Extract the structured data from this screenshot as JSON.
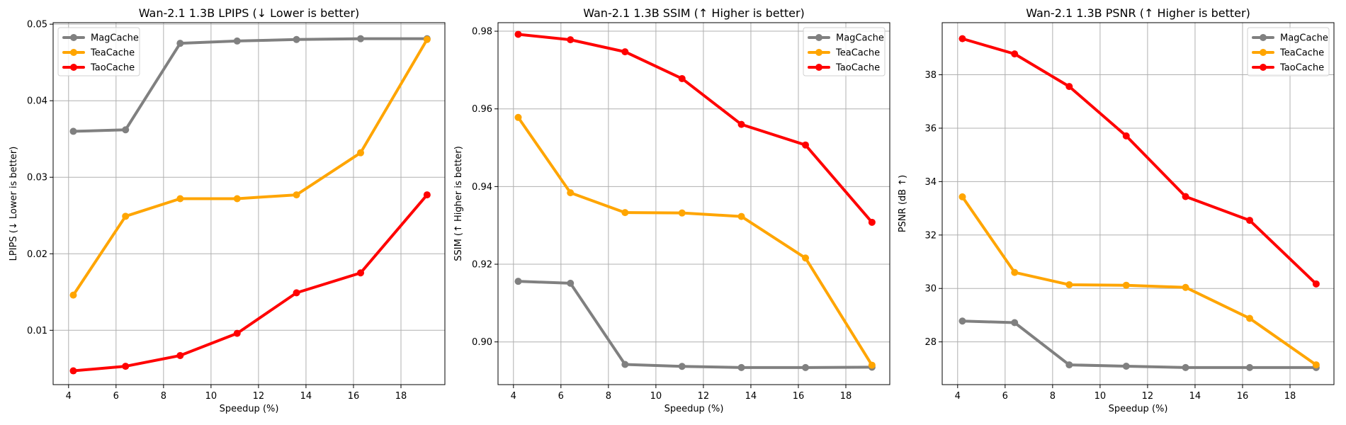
{
  "chart_data": [
    {
      "type": "line",
      "title": "Wan-2.1 1.3B  LPIPS (↓ Lower is better)",
      "xlabel": "Speedup (%)",
      "ylabel": "LPIPS (↓ Lower is better)",
      "xlim": [
        3.35,
        19.85
      ],
      "ylim": [
        0.0029,
        0.0502
      ],
      "xticks": [
        4,
        6,
        8,
        10,
        12,
        14,
        16,
        18
      ],
      "xtick_labels": [
        "4",
        "6",
        "8",
        "10",
        "12",
        "14",
        "16",
        "18"
      ],
      "yticks": [
        0.01,
        0.02,
        0.03,
        0.04,
        0.05
      ],
      "ytick_labels": [
        "0.01",
        "0.02",
        "0.03",
        "0.04",
        "0.05"
      ],
      "grid": true,
      "legend_loc": "upper-left",
      "x": [
        4.2,
        6.4,
        8.7,
        11.1,
        13.6,
        16.3,
        19.1
      ],
      "series": [
        {
          "name": "MagCache",
          "color": "#808080",
          "values": [
            0.036,
            0.0362,
            0.0475,
            0.0478,
            0.048,
            0.0481,
            0.0481
          ]
        },
        {
          "name": "TeaCache",
          "color": "#ffa500",
          "values": [
            0.0146,
            0.0249,
            0.0272,
            0.0272,
            0.0277,
            0.0332,
            0.048
          ]
        },
        {
          "name": "TaoCache",
          "color": "#ff0000",
          "values": [
            0.0047,
            0.0053,
            0.0067,
            0.0096,
            0.0149,
            0.0175,
            0.0277
          ]
        }
      ]
    },
    {
      "type": "line",
      "title": "Wan-2.1 1.3B  SSIM (↑ Higher is better)",
      "xlabel": "Speedup (%)",
      "ylabel": "SSIM (↑ Higher is better)",
      "xlim": [
        3.35,
        19.85
      ],
      "ylim": [
        0.889,
        0.9822
      ],
      "xticks": [
        4,
        6,
        8,
        10,
        12,
        14,
        16,
        18
      ],
      "xtick_labels": [
        "4",
        "6",
        "8",
        "10",
        "12",
        "14",
        "16",
        "18"
      ],
      "yticks": [
        0.9,
        0.92,
        0.94,
        0.96,
        0.98
      ],
      "ytick_labels": [
        "0.90",
        "0.92",
        "0.94",
        "0.96",
        "0.98"
      ],
      "grid": true,
      "legend_loc": "upper-right",
      "x": [
        4.2,
        6.4,
        8.7,
        11.1,
        13.6,
        16.3,
        19.1
      ],
      "series": [
        {
          "name": "MagCache",
          "color": "#808080",
          "values": [
            0.9156,
            0.9151,
            0.8942,
            0.8937,
            0.8934,
            0.8934,
            0.8935
          ]
        },
        {
          "name": "TeaCache",
          "color": "#ffa500",
          "values": [
            0.9578,
            0.9384,
            0.9333,
            0.9332,
            0.9323,
            0.9216,
            0.894
          ]
        },
        {
          "name": "TaoCache",
          "color": "#ff0000",
          "values": [
            0.9792,
            0.9778,
            0.9747,
            0.9678,
            0.956,
            0.9507,
            0.9308
          ]
        }
      ]
    },
    {
      "type": "line",
      "title": "Wan-2.1 1.3B  PSNR (↑ Higher is better)",
      "xlabel": "Speedup (%)",
      "ylabel": "PSNR (dB ↑)",
      "xlim": [
        3.35,
        19.85
      ],
      "ylim": [
        26.4,
        39.95
      ],
      "xticks": [
        4,
        6,
        8,
        10,
        12,
        14,
        16,
        18
      ],
      "xtick_labels": [
        "4",
        "6",
        "8",
        "10",
        "12",
        "14",
        "16",
        "18"
      ],
      "yticks": [
        28,
        30,
        32,
        34,
        36,
        38
      ],
      "ytick_labels": [
        "28",
        "30",
        "32",
        "34",
        "36",
        "38"
      ],
      "grid": true,
      "legend_loc": "upper-right",
      "x": [
        4.2,
        6.4,
        8.7,
        11.1,
        13.6,
        16.3,
        19.1
      ],
      "series": [
        {
          "name": "MagCache",
          "color": "#808080",
          "values": [
            28.78,
            28.72,
            27.14,
            27.09,
            27.04,
            27.04,
            27.04
          ]
        },
        {
          "name": "TeaCache",
          "color": "#ffa500",
          "values": [
            33.43,
            30.6,
            30.14,
            30.12,
            30.04,
            28.88,
            27.14
          ]
        },
        {
          "name": "TaoCache",
          "color": "#ff0000",
          "values": [
            39.35,
            38.78,
            37.56,
            35.71,
            33.44,
            32.55,
            30.17
          ]
        }
      ]
    }
  ]
}
